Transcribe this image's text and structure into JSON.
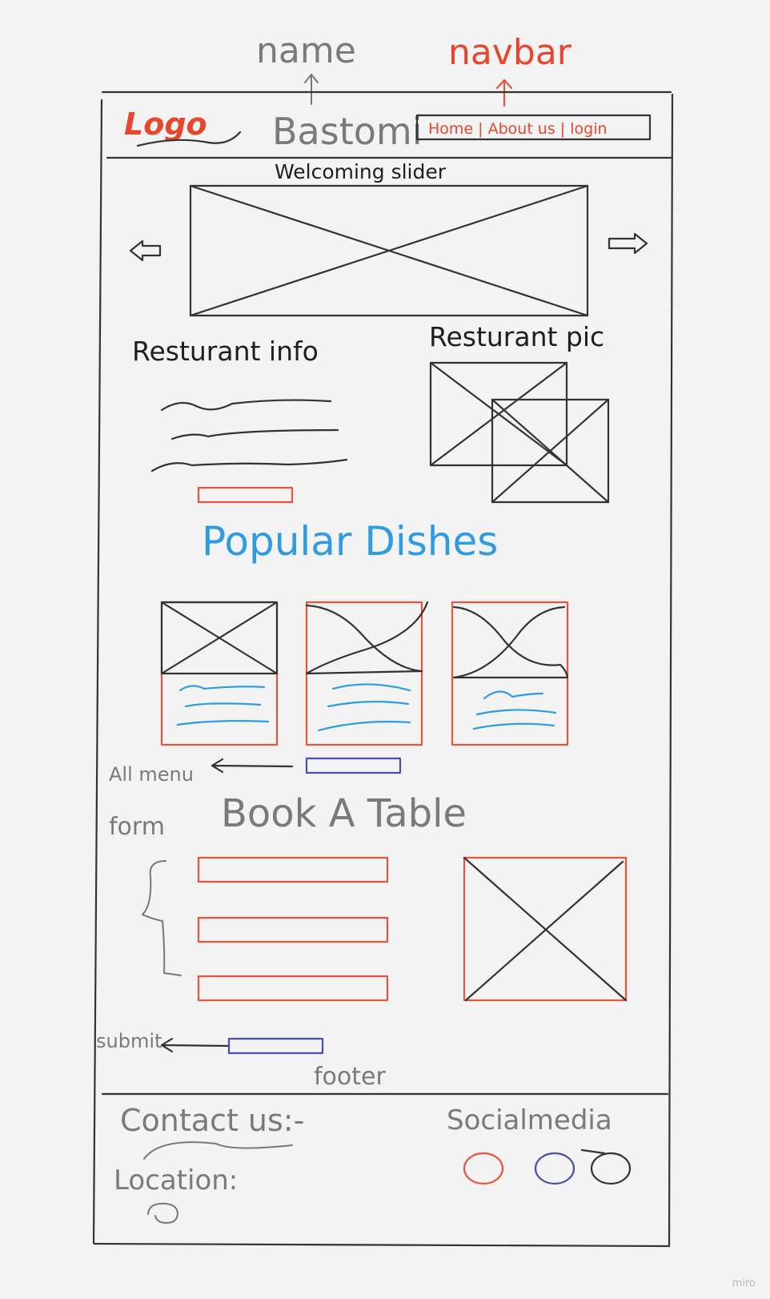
{
  "annotations": {
    "name": "name",
    "navbar": "navbar",
    "welcoming_slider": "Welcoming slider",
    "restaurant_info": "Resturant info",
    "restaurant_pic": "Resturant pic",
    "all_menu": "All menu",
    "form": "form",
    "submit": "submit",
    "footer": "footer"
  },
  "header": {
    "logo": "Logo",
    "site_name": "Bastomi",
    "nav": "Home | About us | login"
  },
  "sections": {
    "popular_dishes": "Popular Dishes",
    "book_a_table": "Book A Table"
  },
  "footer": {
    "contact_us": "Contact us:-",
    "location": "Location:",
    "social_media": "Socialmedia"
  },
  "colors": {
    "accent_red": "#e8553c",
    "accent_blue": "#2f9be0",
    "indigo": "#4650a8",
    "ink": "#333333"
  },
  "watermark": "miro"
}
